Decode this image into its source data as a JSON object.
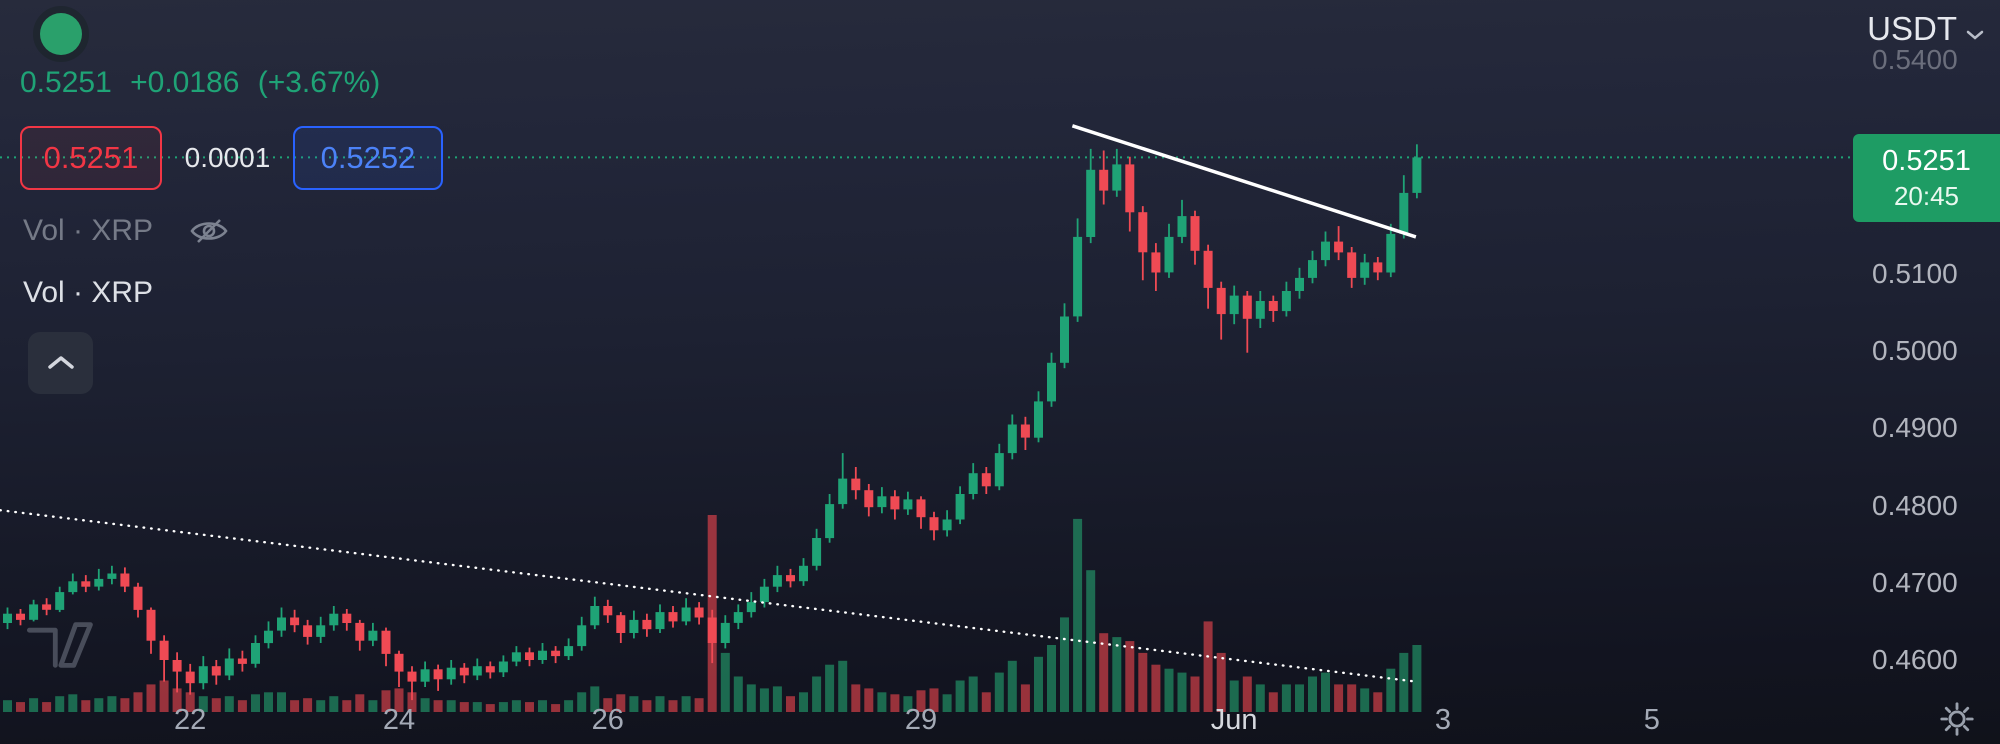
{
  "header": {
    "price": "0.5251",
    "change": "+0.0186",
    "change_pct": "(+3.67%)",
    "bid": "0.5251",
    "spread": "0.0001",
    "ask": "0.5252",
    "volume_legend_hidden": "Vol · XRP",
    "volume_legend": "Vol · XRP",
    "quote_currency": "USDT"
  },
  "price_badge": {
    "price": "0.5251",
    "countdown": "20:45"
  },
  "colors": {
    "up": "#1fa376",
    "down": "#f23645",
    "ask_border": "#2962ff",
    "ask_text": "#4c82f7",
    "badge_bg": "#1e9c64",
    "status_dot": "#2aa06b"
  },
  "axes": {
    "price_labels": [
      {
        "label": "0.5400",
        "price": 0.54,
        "dim": true
      },
      {
        "label": "0.5100",
        "price": 0.51
      },
      {
        "label": "0.5000",
        "price": 0.5
      },
      {
        "label": "0.4900",
        "price": 0.49
      },
      {
        "label": "0.4800",
        "price": 0.48
      },
      {
        "label": "0.4700",
        "price": 0.47
      },
      {
        "label": "0.4600",
        "price": 0.46
      }
    ],
    "time_labels": [
      {
        "label": "22",
        "day": 22
      },
      {
        "label": "24",
        "day": 24
      },
      {
        "label": "26",
        "day": 26
      },
      {
        "label": "29",
        "day": 29
      },
      {
        "label": "Jun",
        "day": 32,
        "emph": true
      },
      {
        "label": "3",
        "day": 34
      },
      {
        "label": "5",
        "day": 36
      }
    ]
  },
  "chart_data": {
    "type": "candlestick",
    "up_color": "#1fa376",
    "down_color": "#ef4a54",
    "volume_up_color": "rgba(35,160,110,0.62)",
    "volume_down_color": "rgba(235,70,78,0.62)",
    "x_axis": {
      "unit": "day_of_may",
      "start_day": 20.125,
      "interval_days": 0.125,
      "visible_range": [
        20.1,
        36.3
      ]
    },
    "y_axis": {
      "visible_range": [
        0.4525,
        0.5455
      ]
    },
    "current_price": 0.5251,
    "current_price_line": {
      "price": 0.5251,
      "style": "dotted"
    },
    "trendlines": [
      {
        "from_day": 30.45,
        "from_price": 0.5292,
        "to_day": 33.74,
        "to_price": 0.5148,
        "style": "solid",
        "color": "#ffffff"
      },
      {
        "from_day": 20.18,
        "from_price": 0.4794,
        "to_day": 33.74,
        "to_price": 0.4572,
        "style": "dotted",
        "color": "#ffffff"
      }
    ],
    "candles": {
      "format": [
        "open",
        "high",
        "low",
        "close",
        "volume"
      ],
      "rows": [
        [
          0.4655,
          0.4662,
          0.4638,
          0.4648,
          5
        ],
        [
          0.4648,
          0.4668,
          0.464,
          0.466,
          6
        ],
        [
          0.466,
          0.4666,
          0.4645,
          0.4652,
          5
        ],
        [
          0.4652,
          0.4678,
          0.465,
          0.4672,
          7
        ],
        [
          0.4672,
          0.468,
          0.4658,
          0.4665,
          5
        ],
        [
          0.4665,
          0.4695,
          0.4662,
          0.4688,
          8
        ],
        [
          0.4688,
          0.4712,
          0.4685,
          0.4702,
          9
        ],
        [
          0.4702,
          0.471,
          0.4688,
          0.4695,
          6
        ],
        [
          0.4695,
          0.4718,
          0.469,
          0.4705,
          7
        ],
        [
          0.4705,
          0.4722,
          0.4698,
          0.4712,
          8
        ],
        [
          0.4712,
          0.472,
          0.4688,
          0.4695,
          7
        ],
        [
          0.4695,
          0.47,
          0.4655,
          0.4665,
          10
        ],
        [
          0.4665,
          0.4668,
          0.4608,
          0.4625,
          14
        ],
        [
          0.4625,
          0.4632,
          0.4572,
          0.46,
          16
        ],
        [
          0.46,
          0.461,
          0.4558,
          0.4585,
          12
        ],
        [
          0.4585,
          0.4595,
          0.4555,
          0.457,
          10
        ],
        [
          0.457,
          0.4605,
          0.4562,
          0.4592,
          8
        ],
        [
          0.4592,
          0.46,
          0.4568,
          0.458,
          7
        ],
        [
          0.458,
          0.4615,
          0.4574,
          0.4602,
          8
        ],
        [
          0.4602,
          0.4612,
          0.4585,
          0.4595,
          6
        ],
        [
          0.4595,
          0.4632,
          0.459,
          0.4622,
          9
        ],
        [
          0.4622,
          0.465,
          0.4615,
          0.4638,
          10
        ],
        [
          0.4638,
          0.4668,
          0.463,
          0.4655,
          10
        ],
        [
          0.4655,
          0.4665,
          0.4636,
          0.4645,
          6
        ],
        [
          0.4645,
          0.4652,
          0.462,
          0.463,
          7
        ],
        [
          0.463,
          0.4656,
          0.4622,
          0.4645,
          6
        ],
        [
          0.4645,
          0.467,
          0.4638,
          0.466,
          8
        ],
        [
          0.466,
          0.4666,
          0.4638,
          0.4648,
          6
        ],
        [
          0.4648,
          0.4652,
          0.4612,
          0.4625,
          9
        ],
        [
          0.4625,
          0.4648,
          0.4618,
          0.4638,
          6
        ],
        [
          0.4638,
          0.4642,
          0.4592,
          0.4608,
          11
        ],
        [
          0.4608,
          0.4612,
          0.4565,
          0.4585,
          12
        ],
        [
          0.4585,
          0.4592,
          0.4548,
          0.4572,
          10
        ],
        [
          0.4572,
          0.4598,
          0.4565,
          0.4588,
          7
        ],
        [
          0.4588,
          0.4594,
          0.456,
          0.4575,
          6
        ],
        [
          0.4575,
          0.46,
          0.4568,
          0.459,
          6
        ],
        [
          0.459,
          0.4596,
          0.457,
          0.458,
          5
        ],
        [
          0.458,
          0.4602,
          0.4574,
          0.4592,
          5
        ],
        [
          0.4592,
          0.4598,
          0.4576,
          0.4584,
          4
        ],
        [
          0.4584,
          0.4606,
          0.4578,
          0.4598,
          5
        ],
        [
          0.4598,
          0.4618,
          0.4592,
          0.461,
          6
        ],
        [
          0.461,
          0.4616,
          0.4592,
          0.46,
          5
        ],
        [
          0.46,
          0.4622,
          0.4595,
          0.4612,
          6
        ],
        [
          0.4612,
          0.4618,
          0.4596,
          0.4605,
          4
        ],
        [
          0.4605,
          0.4628,
          0.46,
          0.4618,
          6
        ],
        [
          0.4618,
          0.4656,
          0.4612,
          0.4645,
          10
        ],
        [
          0.4645,
          0.4682,
          0.464,
          0.467,
          13
        ],
        [
          0.467,
          0.4678,
          0.4648,
          0.4658,
          7
        ],
        [
          0.4658,
          0.4662,
          0.4622,
          0.4635,
          9
        ],
        [
          0.4635,
          0.4664,
          0.4628,
          0.4652,
          8
        ],
        [
          0.4652,
          0.466,
          0.463,
          0.464,
          6
        ],
        [
          0.464,
          0.4672,
          0.4635,
          0.4662,
          8
        ],
        [
          0.4662,
          0.467,
          0.4642,
          0.465,
          6
        ],
        [
          0.465,
          0.468,
          0.4645,
          0.4668,
          8
        ],
        [
          0.4668,
          0.4675,
          0.4646,
          0.4655,
          7
        ],
        [
          0.4655,
          0.4665,
          0.4596,
          0.4622,
          100
        ],
        [
          0.4622,
          0.4658,
          0.4615,
          0.4648,
          30
        ],
        [
          0.4648,
          0.4672,
          0.464,
          0.4662,
          18
        ],
        [
          0.4662,
          0.4688,
          0.4655,
          0.4675,
          14
        ],
        [
          0.4675,
          0.4705,
          0.4668,
          0.4695,
          12
        ],
        [
          0.4695,
          0.4722,
          0.4688,
          0.471,
          13
        ],
        [
          0.471,
          0.4718,
          0.4694,
          0.4702,
          8
        ],
        [
          0.4702,
          0.4732,
          0.4696,
          0.4722,
          10
        ],
        [
          0.4722,
          0.477,
          0.4716,
          0.4758,
          18
        ],
        [
          0.4758,
          0.4815,
          0.4752,
          0.4802,
          24
        ],
        [
          0.4802,
          0.4868,
          0.4796,
          0.4835,
          26
        ],
        [
          0.4835,
          0.485,
          0.4808,
          0.482,
          14
        ],
        [
          0.482,
          0.4828,
          0.4786,
          0.4798,
          12
        ],
        [
          0.4798,
          0.4824,
          0.479,
          0.4812,
          10
        ],
        [
          0.4812,
          0.482,
          0.4782,
          0.4795,
          9
        ],
        [
          0.4795,
          0.4818,
          0.4788,
          0.4808,
          8
        ],
        [
          0.4808,
          0.4812,
          0.477,
          0.4785,
          11
        ],
        [
          0.4785,
          0.4792,
          0.4755,
          0.4768,
          12
        ],
        [
          0.4768,
          0.4794,
          0.476,
          0.4782,
          9
        ],
        [
          0.4782,
          0.4825,
          0.4776,
          0.4815,
          16
        ],
        [
          0.4815,
          0.4855,
          0.4808,
          0.4842,
          18
        ],
        [
          0.4842,
          0.485,
          0.4815,
          0.4825,
          10
        ],
        [
          0.4825,
          0.488,
          0.482,
          0.4868,
          20
        ],
        [
          0.4868,
          0.4918,
          0.486,
          0.4905,
          26
        ],
        [
          0.4905,
          0.4915,
          0.4872,
          0.4888,
          14
        ],
        [
          0.4888,
          0.4948,
          0.4882,
          0.4935,
          28
        ],
        [
          0.4935,
          0.4998,
          0.4928,
          0.4985,
          34
        ],
        [
          0.4985,
          0.5062,
          0.4978,
          0.5045,
          48
        ],
        [
          0.5045,
          0.5172,
          0.5038,
          0.5148,
          98
        ],
        [
          0.5148,
          0.5262,
          0.514,
          0.5235,
          72
        ],
        [
          0.5235,
          0.526,
          0.519,
          0.5208,
          40
        ],
        [
          0.5208,
          0.5262,
          0.52,
          0.5242,
          38
        ],
        [
          0.5242,
          0.5252,
          0.5155,
          0.518,
          36
        ],
        [
          0.518,
          0.5188,
          0.5092,
          0.5128,
          30
        ],
        [
          0.5128,
          0.514,
          0.5078,
          0.5102,
          24
        ],
        [
          0.5102,
          0.5165,
          0.5095,
          0.5148,
          22
        ],
        [
          0.5148,
          0.5196,
          0.514,
          0.5175,
          20
        ],
        [
          0.5175,
          0.5182,
          0.5112,
          0.513,
          18
        ],
        [
          0.513,
          0.5138,
          0.5055,
          0.5082,
          46
        ],
        [
          0.5082,
          0.509,
          0.5015,
          0.5048,
          30
        ],
        [
          0.5048,
          0.5085,
          0.5035,
          0.5072,
          16
        ],
        [
          0.5072,
          0.5078,
          0.4998,
          0.5042,
          18
        ],
        [
          0.5042,
          0.5078,
          0.503,
          0.5065,
          14
        ],
        [
          0.5065,
          0.5072,
          0.5038,
          0.5052,
          10
        ],
        [
          0.5052,
          0.509,
          0.5045,
          0.5078,
          14
        ],
        [
          0.5078,
          0.5108,
          0.5068,
          0.5095,
          14
        ],
        [
          0.5095,
          0.513,
          0.5088,
          0.5118,
          18
        ],
        [
          0.5118,
          0.5155,
          0.511,
          0.5142,
          20
        ],
        [
          0.5142,
          0.5162,
          0.5118,
          0.5128,
          14
        ],
        [
          0.5128,
          0.5135,
          0.5082,
          0.5095,
          14
        ],
        [
          0.5095,
          0.5126,
          0.5086,
          0.5115,
          12
        ],
        [
          0.5115,
          0.5122,
          0.5092,
          0.5102,
          10
        ],
        [
          0.5102,
          0.5165,
          0.5096,
          0.5152,
          22
        ],
        [
          0.5152,
          0.5228,
          0.5146,
          0.5205,
          30
        ],
        [
          0.5205,
          0.5268,
          0.5198,
          0.5251,
          34
        ]
      ]
    }
  }
}
